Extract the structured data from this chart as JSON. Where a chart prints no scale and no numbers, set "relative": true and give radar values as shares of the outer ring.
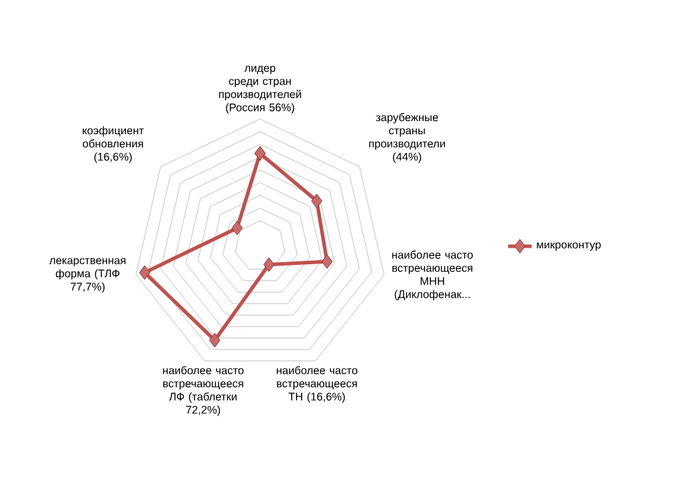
{
  "chart_data": {
    "type": "radar",
    "relative": true,
    "categories": [
      "лидер среди стран производителей (Россия 56%)",
      "зарубежные страны производители (44%)",
      "наиболее часто встречающееся МНН (Диклофенак...",
      "наиболее часто встречающееся ТН (16,6%)",
      "наиболее часто встречающееся ЛФ (таблетки 72,2%)",
      "лекарственная форма (ТЛФ 77,7%)",
      "коэфициент обновления (16,6%)"
    ],
    "series": [
      {
        "name": "микроконтур",
        "color": "#c0504d",
        "values": [
          0.73,
          0.57,
          0.54,
          0.16,
          0.82,
          0.93,
          0.23
        ]
      }
    ],
    "grid": true,
    "legend": "right",
    "marker": "diamond",
    "line_style": "solid"
  }
}
